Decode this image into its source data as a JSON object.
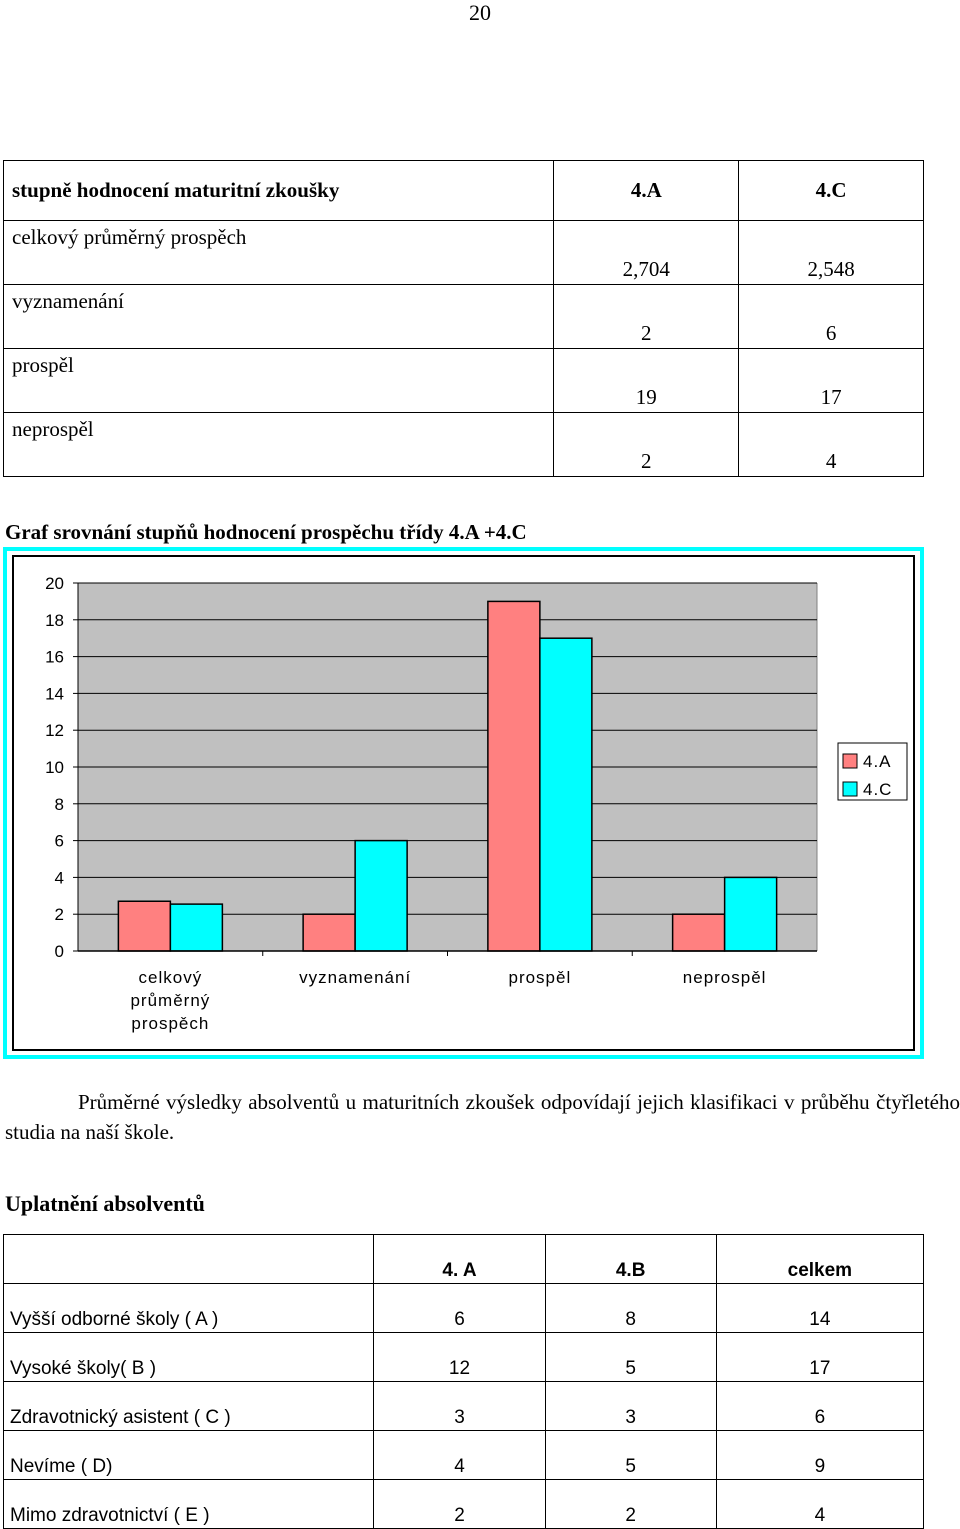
{
  "page_number": "20",
  "grades_table": {
    "header": [
      "stupně hodnocení maturitní zkoušky",
      "4.A",
      "4.C"
    ],
    "rows": [
      [
        "celkový průměrný prospěch",
        "2,704",
        "2,548"
      ],
      [
        "vyznamenání",
        "2",
        "6"
      ],
      [
        "prospěl",
        "19",
        "17"
      ],
      [
        "neprospěl",
        "2",
        "4"
      ]
    ]
  },
  "chart_heading": "Graf srovnání stupňů hodnocení prospěchu třídy 4.A +4.C",
  "chart_data": {
    "type": "bar",
    "title": "",
    "xlabel": "",
    "ylabel": "",
    "categories": [
      [
        "celkový",
        "průměrný",
        "prospěch"
      ],
      [
        "vyznamenání"
      ],
      [
        "prospěl"
      ],
      [
        "neprospěl"
      ]
    ],
    "series": [
      {
        "name": "4.A",
        "values": [
          2.704,
          2,
          19,
          2
        ],
        "color": "#ff8080"
      },
      {
        "name": "4.C",
        "values": [
          2.548,
          6,
          17,
          4
        ],
        "color": "#00ffff"
      }
    ],
    "ylim": [
      0,
      20
    ],
    "yticks": [
      0,
      2,
      4,
      6,
      8,
      10,
      12,
      14,
      16,
      18,
      20
    ],
    "grid": true,
    "plot_background": "#c0c0c0",
    "frame_color": "#00ffff",
    "legend_position": "right"
  },
  "paragraph": "Průměrné výsledky absolventů u maturitních zkoušek odpovídají jejich klasifikaci v průběhu  čtyřletého studia na naší škole.",
  "uplatneni_heading": "Uplatnění absolventů",
  "outcomes_table": {
    "header": [
      "",
      "4. A",
      "4.B",
      "celkem"
    ],
    "rows": [
      [
        "Vyšší odborné školy  ( A )",
        "6",
        "8",
        "14"
      ],
      [
        "Vysoké školy( B )",
        "12",
        "5",
        "17"
      ],
      [
        "Zdravotnický asistent ( C )",
        "3",
        "3",
        "6"
      ],
      [
        "Nevíme ( D)",
        "4",
        "5",
        "9"
      ],
      [
        "Mimo zdravotnictví ( E )",
        "2",
        "2",
        "4"
      ]
    ]
  }
}
